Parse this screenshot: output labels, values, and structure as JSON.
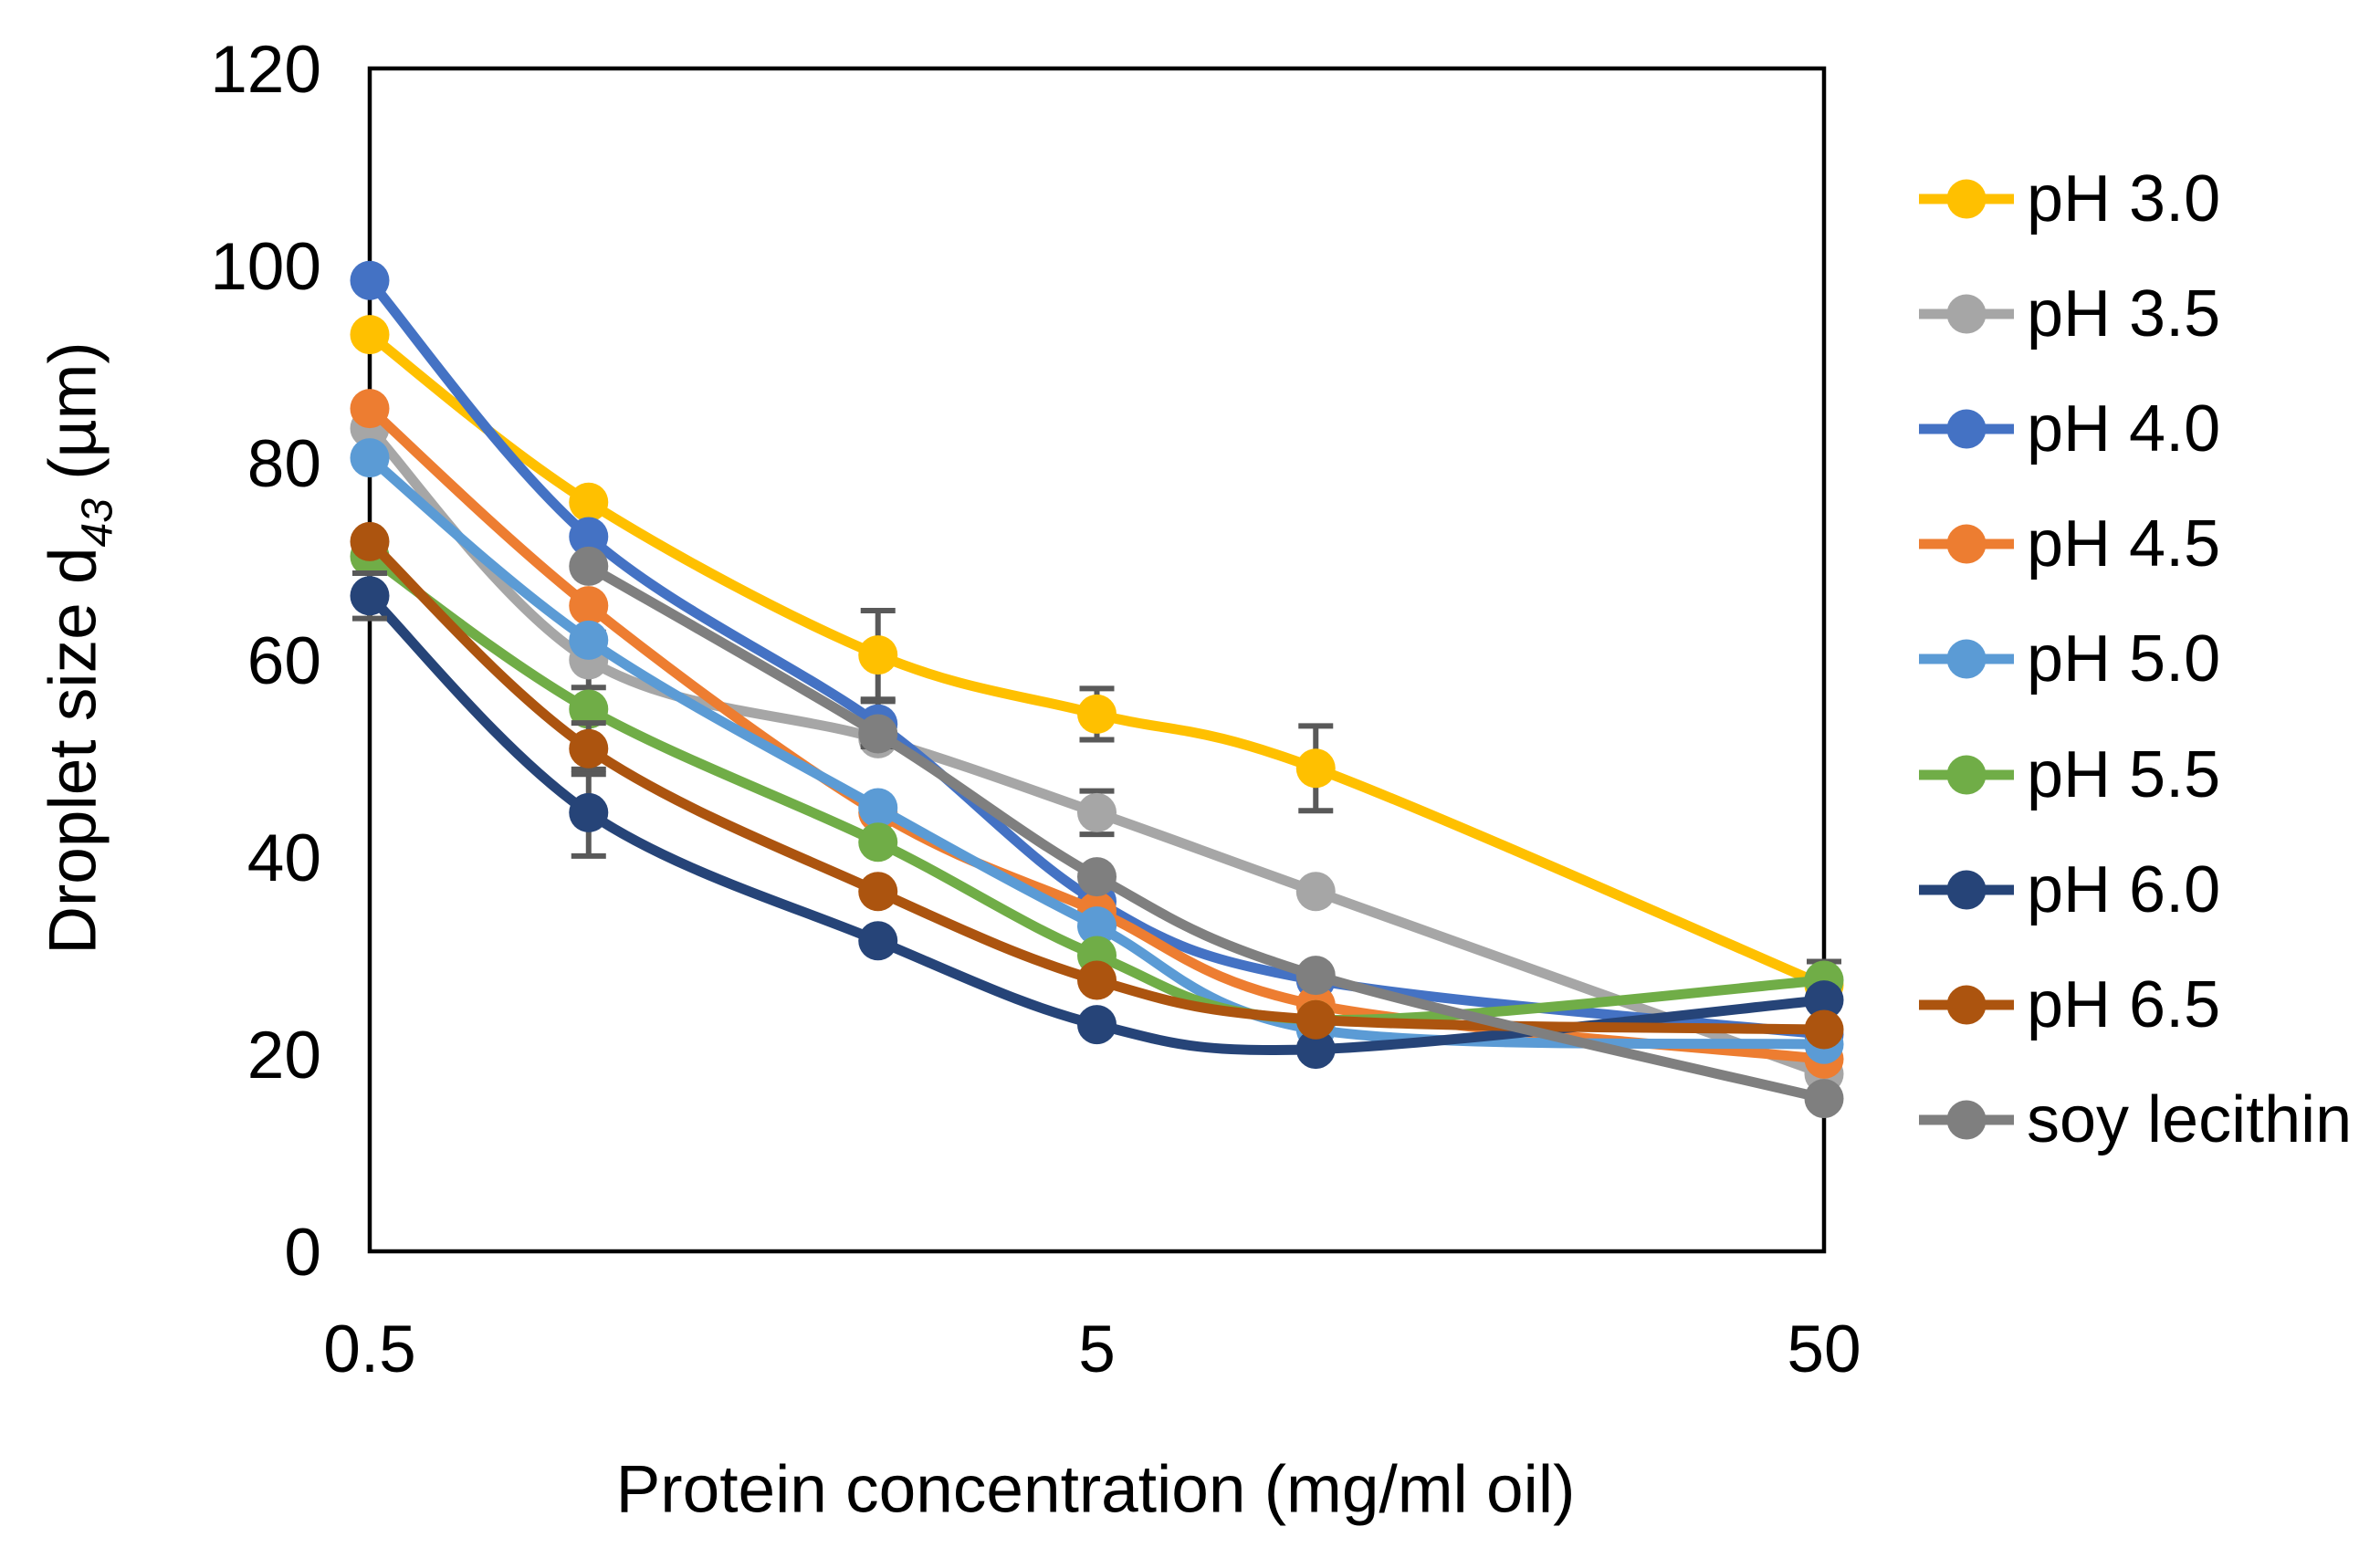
{
  "figure": {
    "x_axis_title": "Protein concentration (mg/ml oil)",
    "y_axis_title": {
      "pre": "Droplet size d",
      "sub": "43",
      "post": " (µm)"
    }
  },
  "chart_data": {
    "type": "line",
    "x_scale": "log",
    "grid": false,
    "legend_position": "right",
    "x": [
      0.5,
      1,
      2.5,
      5,
      10,
      50
    ],
    "x_tick_labels": [
      "0.5",
      "5",
      "50"
    ],
    "x_ticks": [
      0.5,
      5,
      50
    ],
    "y_ticks": [
      0,
      20,
      40,
      60,
      80,
      100,
      120
    ],
    "xlim": [
      0.5,
      50
    ],
    "ylim": [
      0,
      120
    ],
    "xlabel": "Protein concentration (mg/ml oil)",
    "ylabel": "Droplet size d43 (µm)",
    "axis_color": "#000000",
    "error_bar_color": "#595959",
    "series": [
      {
        "name": "pH 3.0",
        "color": "#FFC000",
        "values": [
          93,
          76,
          60.5,
          54.5,
          49,
          27
        ],
        "errors": [
          0,
          0,
          4.5,
          2.6,
          4.3,
          0
        ]
      },
      {
        "name": "pH 3.5",
        "color": "#A6A6A6",
        "values": [
          83.5,
          60,
          52,
          44.5,
          36.5,
          18
        ],
        "errors": [
          0,
          2.8,
          0,
          2.2,
          0,
          0
        ]
      },
      {
        "name": "pH 4.0",
        "color": "#4472C4",
        "values": [
          98.5,
          72.5,
          53.5,
          35.5,
          27.5,
          22
        ],
        "errors": [
          0,
          0,
          2.3,
          0,
          0,
          0
        ]
      },
      {
        "name": "pH 4.5",
        "color": "#ED7D31",
        "values": [
          85.5,
          65.5,
          44.5,
          34.5,
          25,
          19.5
        ],
        "errors": [
          0,
          0,
          0,
          0,
          0,
          0
        ]
      },
      {
        "name": "pH 5.0",
        "color": "#5B9BD5",
        "values": [
          80.5,
          62,
          45,
          33,
          22.5,
          21
        ],
        "errors": [
          0,
          0,
          0,
          0,
          0,
          0
        ]
      },
      {
        "name": "pH 5.5",
        "color": "#70AD47",
        "values": [
          70.5,
          55,
          41.5,
          30,
          23.5,
          27.5
        ],
        "errors": [
          0,
          0,
          0,
          0,
          0,
          1.9
        ]
      },
      {
        "name": "pH 6.0",
        "color": "#264478",
        "values": [
          66.5,
          44.5,
          31.5,
          23,
          20.5,
          25.5
        ],
        "errors": [
          2.3,
          4.4,
          0,
          0,
          0,
          0
        ]
      },
      {
        "name": "pH 6.5",
        "color": "#AC540F",
        "values": [
          72,
          51,
          36.5,
          27.5,
          23.5,
          22.5
        ],
        "errors": [
          0,
          2.6,
          0,
          0,
          0,
          0
        ]
      },
      {
        "name": "soy lecithin",
        "color": "#7F7F7F",
        "values": [
          null,
          69.5,
          52.5,
          38,
          28,
          15.5
        ],
        "errors": [
          0,
          0,
          0,
          0,
          0,
          0
        ]
      }
    ]
  }
}
